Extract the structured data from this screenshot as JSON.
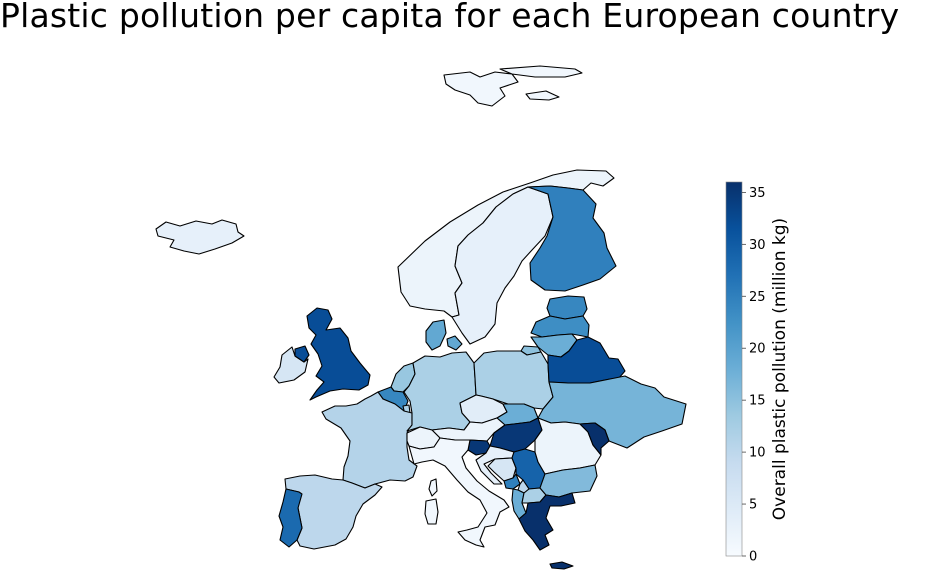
{
  "title": "Plastic pollution per capita for each European country",
  "colorbar": {
    "label": "Overall plastic pollution (million kg)",
    "min": 0,
    "max": 36,
    "ticks": [
      "0",
      "5",
      "10",
      "15",
      "20",
      "25",
      "30",
      "35"
    ],
    "colors": [
      "#f7fbff",
      "#deebf7",
      "#c6dbef",
      "#9ecae1",
      "#6baed6",
      "#4292c6",
      "#2171b5",
      "#08519c",
      "#08306b"
    ]
  },
  "map_data": {
    "type": "choropleth",
    "value_scale": "Blues",
    "regions": [
      {
        "name": "Svalbard",
        "value": 1
      },
      {
        "name": "Iceland",
        "value": 3
      },
      {
        "name": "Norway",
        "value": 2
      },
      {
        "name": "Sweden",
        "value": 3
      },
      {
        "name": "Finland",
        "value": 25
      },
      {
        "name": "Estonia",
        "value": 24
      },
      {
        "name": "Latvia",
        "value": 23
      },
      {
        "name": "Lithuania",
        "value": 18
      },
      {
        "name": "Denmark",
        "value": 19
      },
      {
        "name": "Russia (Kaliningrad)",
        "value": 15
      },
      {
        "name": "United Kingdom",
        "value": 32
      },
      {
        "name": "Ireland",
        "value": 6
      },
      {
        "name": "Northern Ireland",
        "value": 32
      },
      {
        "name": "Netherlands",
        "value": 14
      },
      {
        "name": "Belgium",
        "value": 24
      },
      {
        "name": "Luxembourg",
        "value": 12
      },
      {
        "name": "France",
        "value": 11
      },
      {
        "name": "Spain",
        "value": 10
      },
      {
        "name": "Portugal",
        "value": 28
      },
      {
        "name": "Germany",
        "value": 12
      },
      {
        "name": "Poland",
        "value": 12
      },
      {
        "name": "Belarus",
        "value": 32
      },
      {
        "name": "Ukraine",
        "value": 17
      },
      {
        "name": "Czech Republic",
        "value": 4
      },
      {
        "name": "Slovakia",
        "value": 18
      },
      {
        "name": "Austria",
        "value": 2
      },
      {
        "name": "Switzerland",
        "value": 2
      },
      {
        "name": "Hungary",
        "value": 35
      },
      {
        "name": "Slovenia",
        "value": 35
      },
      {
        "name": "Croatia",
        "value": 3
      },
      {
        "name": "Bosnia and Herzegovina",
        "value": 6
      },
      {
        "name": "Serbia",
        "value": 29
      },
      {
        "name": "Montenegro",
        "value": 25
      },
      {
        "name": "Kosovo",
        "value": 10
      },
      {
        "name": "Albania",
        "value": 18
      },
      {
        "name": "North Macedonia",
        "value": 12
      },
      {
        "name": "Romania",
        "value": 2
      },
      {
        "name": "Moldova",
        "value": 36
      },
      {
        "name": "Bulgaria",
        "value": 16
      },
      {
        "name": "Greece",
        "value": 36
      },
      {
        "name": "Italy",
        "value": 1
      },
      {
        "name": "Sardinia",
        "value": 1
      },
      {
        "name": "Corsica",
        "value": 1
      },
      {
        "name": "Crete",
        "value": 36
      }
    ]
  }
}
